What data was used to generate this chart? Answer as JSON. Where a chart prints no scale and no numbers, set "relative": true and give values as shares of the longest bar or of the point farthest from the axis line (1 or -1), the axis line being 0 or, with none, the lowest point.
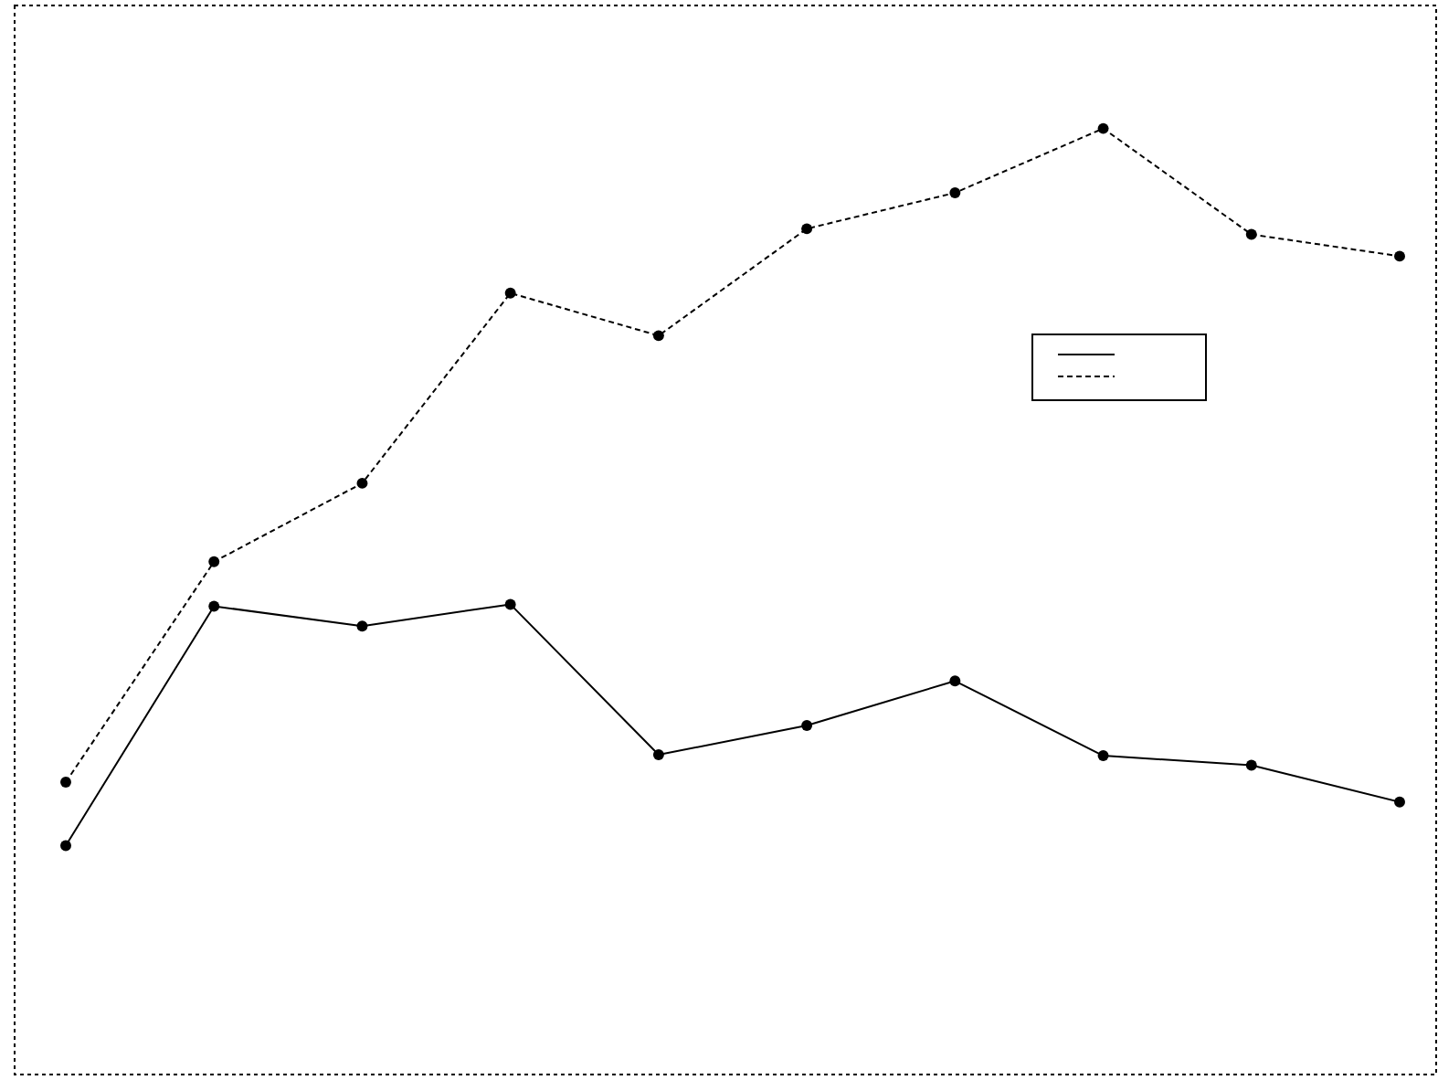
{
  "chart_data": {
    "type": "line",
    "relative": true,
    "categories": [
      null,
      null,
      null,
      null,
      null,
      null,
      null,
      null,
      null,
      null
    ],
    "series": [
      {
        "color": "#000000",
        "line_style": "solid",
        "values": [
          0.242,
          0.495,
          0.474,
          0.497,
          0.338,
          0.369,
          0.416,
          0.337,
          0.327,
          0.288
        ]
      },
      {
        "color": "#000000",
        "line_style": "dashed",
        "values": [
          0.309,
          0.542,
          0.625,
          0.826,
          0.781,
          0.894,
          0.932,
          1,
          0.888,
          0.865
        ]
      }
    ],
    "marker": "circle",
    "grid": false
  }
}
